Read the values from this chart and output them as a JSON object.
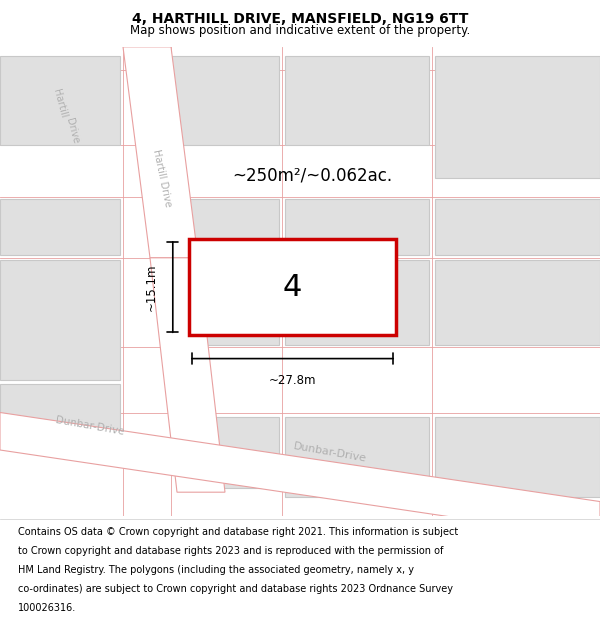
{
  "title": "4, HARTHILL DRIVE, MANSFIELD, NG19 6TT",
  "subtitle": "Map shows position and indicative extent of the property.",
  "footer_lines": [
    "Contains OS data © Crown copyright and database right 2021. This information is subject",
    "to Crown copyright and database rights 2023 and is reproduced with the permission of",
    "HM Land Registry. The polygons (including the associated geometry, namely x, y",
    "co-ordinates) are subject to Crown copyright and database rights 2023 Ordnance Survey",
    "100026316."
  ],
  "map_bg": "#f0f0f0",
  "plot_color": "#cc0000",
  "road_line_color": "#e8a0a0",
  "road_text_color": "#b0b0b0",
  "building_color": "#e0e0e0",
  "building_edge": "#c8c8c8",
  "area_text": "~250m²/~0.062ac.",
  "width_text": "~27.8m",
  "height_text": "~15.1m",
  "plot_label": "4",
  "hartill_label_upper": "Hartill Drive",
  "hartill_label_lower": "Hartill Drive",
  "dunbar_label_left": "Dunbar-Drive",
  "dunbar_label_right": "Dunbar-Drive"
}
